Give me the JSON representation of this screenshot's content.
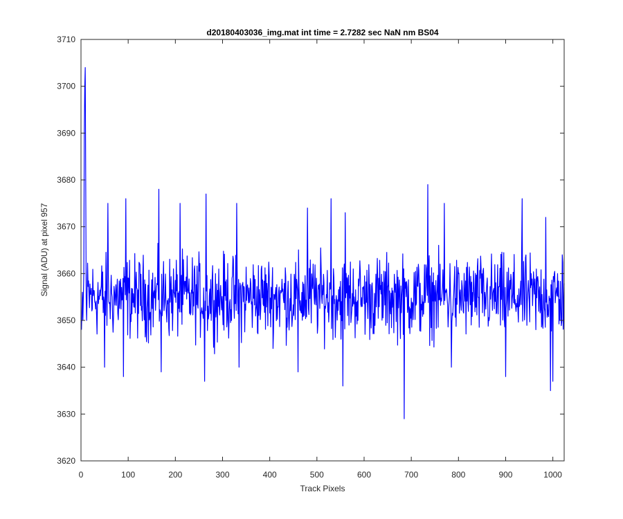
{
  "chart_data": {
    "type": "line",
    "title": "d20180403036_img.mat int time = 2.7282 sec  NaN nm BS04",
    "xlabel": "Track Pixels",
    "ylabel": "Signal (ADU) at pixel 957",
    "xlim": [
      0,
      1024
    ],
    "ylim": [
      3620,
      3710
    ],
    "xticks": [
      0,
      100,
      200,
      300,
      400,
      500,
      600,
      700,
      800,
      900,
      1000
    ],
    "yticks": [
      3620,
      3630,
      3640,
      3650,
      3660,
      3670,
      3680,
      3690,
      3700,
      3710
    ],
    "grid": false,
    "legend": "none",
    "series": [
      {
        "color": "#0000ff",
        "x_start": 1,
        "x_step": 1,
        "baseline": 3655,
        "noise_amplitude": 8,
        "points": [
          [
            1,
            3648
          ],
          [
            2,
            3652
          ],
          [
            3,
            3656
          ],
          [
            4,
            3650
          ],
          [
            5,
            3655
          ],
          [
            6,
            3660
          ],
          [
            7,
            3690
          ],
          [
            8,
            3700
          ],
          [
            9,
            3704
          ],
          [
            10,
            3680
          ],
          [
            11,
            3655
          ],
          [
            12,
            3650
          ],
          [
            50,
            3640
          ],
          [
            57,
            3675
          ],
          [
            90,
            3638
          ],
          [
            95,
            3676
          ],
          [
            165,
            3678
          ],
          [
            170,
            3639
          ],
          [
            210,
            3675
          ],
          [
            262,
            3637
          ],
          [
            265,
            3677
          ],
          [
            330,
            3675
          ],
          [
            335,
            3640
          ],
          [
            460,
            3639
          ],
          [
            480,
            3674
          ],
          [
            530,
            3676
          ],
          [
            555,
            3636
          ],
          [
            560,
            3673
          ],
          [
            685,
            3629
          ],
          [
            735,
            3679
          ],
          [
            770,
            3675
          ],
          [
            785,
            3640
          ],
          [
            900,
            3638
          ],
          [
            935,
            3676
          ],
          [
            985,
            3672
          ],
          [
            995,
            3635
          ],
          [
            1000,
            3637
          ],
          [
            1010,
            3660
          ],
          [
            1015,
            3650
          ],
          [
            1020,
            3664
          ]
        ]
      }
    ]
  }
}
